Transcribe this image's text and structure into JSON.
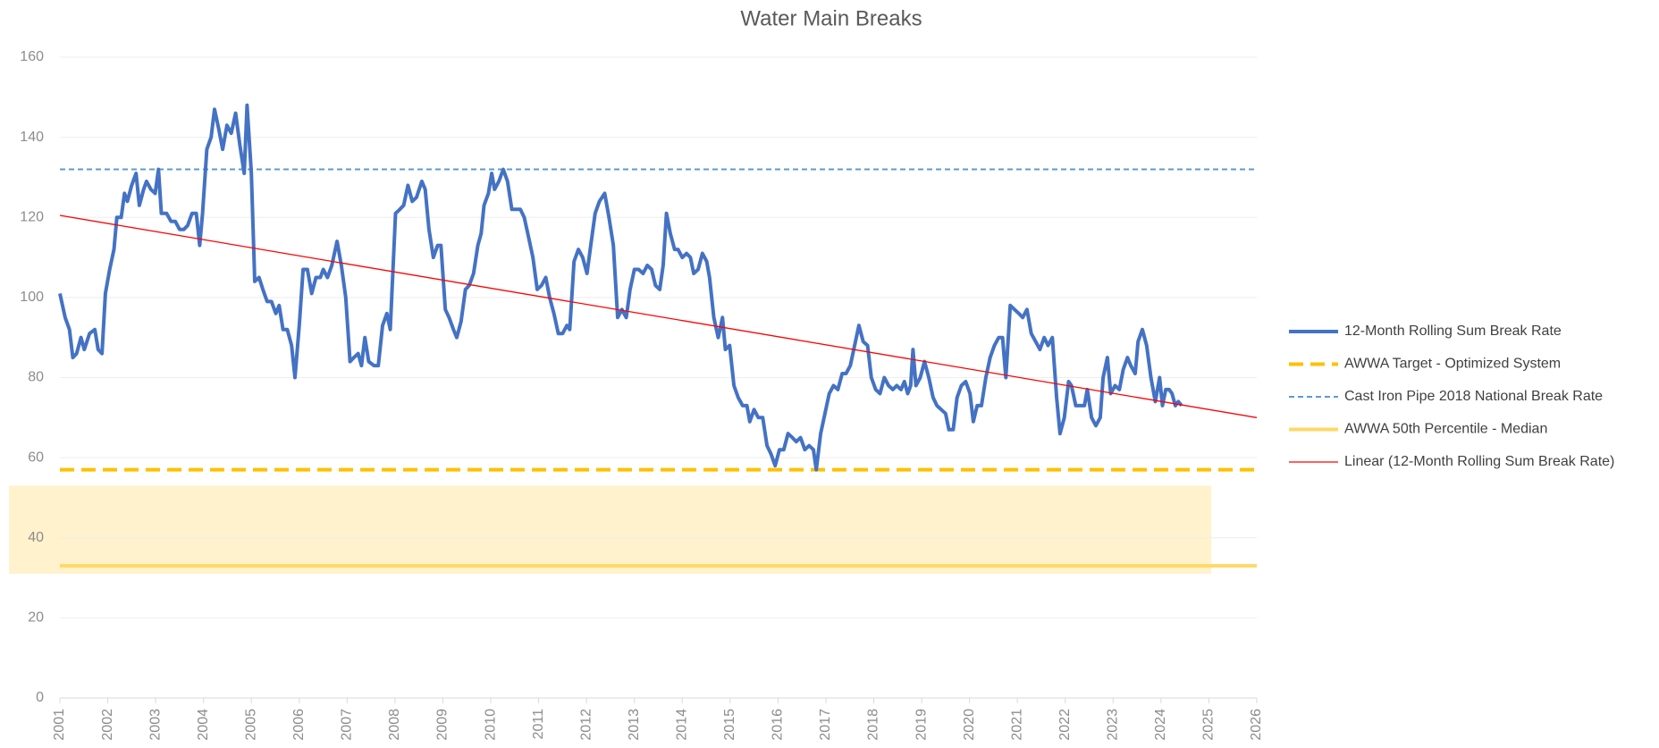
{
  "chart_data": {
    "type": "line",
    "title": "Water Main Breaks",
    "xlim": [
      2001,
      2026
    ],
    "xticks": [
      2001,
      2002,
      2003,
      2004,
      2005,
      2006,
      2007,
      2008,
      2009,
      2010,
      2011,
      2012,
      2013,
      2014,
      2015,
      2016,
      2017,
      2018,
      2019,
      2020,
      2021,
      2022,
      2023,
      2024,
      2025,
      2026
    ],
    "ylim": [
      0,
      160
    ],
    "yticks": [
      0,
      20,
      40,
      60,
      80,
      100,
      120,
      140,
      160
    ],
    "grid": true,
    "legend": "right",
    "band": {
      "ylim": [
        31,
        53
      ],
      "x_end": 2025.05,
      "color": "#fff2cc"
    },
    "series": [
      {
        "name": "12-Month Rolling Sum Break Rate",
        "color": "#4472c4",
        "width": 4,
        "dash": "solid",
        "x": [
          2001.0,
          2001.11,
          2001.2,
          2001.27,
          2001.35,
          2001.44,
          2001.51,
          2001.62,
          2001.73,
          2001.8,
          2001.88,
          2001.95,
          2002.04,
          2002.13,
          2002.19,
          2002.28,
          2002.35,
          2002.41,
          2002.5,
          2002.59,
          2002.66,
          2002.75,
          2002.81,
          2002.9,
          2002.99,
          2003.06,
          2003.12,
          2003.23,
          2003.32,
          2003.41,
          2003.5,
          2003.59,
          2003.67,
          2003.76,
          2003.85,
          2003.92,
          2003.98,
          2004.07,
          2004.16,
          2004.23,
          2004.32,
          2004.4,
          2004.49,
          2004.58,
          2004.67,
          2004.76,
          2004.85,
          2004.91,
          2005.0,
          2005.07,
          2005.16,
          2005.24,
          2005.33,
          2005.42,
          2005.51,
          2005.58,
          2005.66,
          2005.75,
          2005.84,
          2005.91,
          2006.0,
          2006.08,
          2006.17,
          2006.26,
          2006.35,
          2006.44,
          2006.5,
          2006.59,
          2006.68,
          2006.79,
          2006.88,
          2006.97,
          2007.06,
          2007.14,
          2007.23,
          2007.3,
          2007.37,
          2007.45,
          2007.56,
          2007.65,
          2007.74,
          2007.83,
          2007.9,
          2008.01,
          2008.1,
          2008.18,
          2008.27,
          2008.36,
          2008.45,
          2008.56,
          2008.63,
          2008.71,
          2008.8,
          2008.89,
          2008.96,
          2009.05,
          2009.13,
          2009.22,
          2009.29,
          2009.38,
          2009.47,
          2009.55,
          2009.64,
          2009.73,
          2009.8,
          2009.86,
          2009.95,
          2010.02,
          2010.08,
          2010.17,
          2010.26,
          2010.35,
          2010.44,
          2010.53,
          2010.62,
          2010.7,
          2010.79,
          2010.88,
          2010.97,
          2011.06,
          2011.15,
          2011.23,
          2011.32,
          2011.41,
          2011.5,
          2011.59,
          2011.65,
          2011.74,
          2011.83,
          2011.92,
          2012.01,
          2012.1,
          2012.18,
          2012.27,
          2012.38,
          2012.47,
          2012.56,
          2012.65,
          2012.74,
          2012.83,
          2012.91,
          2013.0,
          2013.09,
          2013.18,
          2013.27,
          2013.36,
          2013.44,
          2013.53,
          2013.6,
          2013.67,
          2013.75,
          2013.84,
          2013.91,
          2014.0,
          2014.09,
          2014.17,
          2014.24,
          2014.33,
          2014.42,
          2014.51,
          2014.57,
          2014.66,
          2014.75,
          2014.84,
          2014.9,
          2014.99,
          2015.08,
          2015.17,
          2015.26,
          2015.35,
          2015.41,
          2015.5,
          2015.59,
          2015.68,
          2015.77,
          2015.85,
          2015.94,
          2016.03,
          2016.12,
          2016.21,
          2016.3,
          2016.38,
          2016.47,
          2016.56,
          2016.65,
          2016.74,
          2016.8,
          2016.89,
          2016.98,
          2017.07,
          2017.16,
          2017.25,
          2017.34,
          2017.42,
          2017.51,
          2017.6,
          2017.69,
          2017.78,
          2017.87,
          2017.95,
          2018.04,
          2018.13,
          2018.22,
          2018.31,
          2018.4,
          2018.48,
          2018.57,
          2018.64,
          2018.71,
          2018.77,
          2018.82,
          2018.88,
          2018.97,
          2019.06,
          2019.15,
          2019.24,
          2019.32,
          2019.41,
          2019.5,
          2019.57,
          2019.66,
          2019.74,
          2019.83,
          2019.92,
          2020.01,
          2020.08,
          2020.16,
          2020.25,
          2020.34,
          2020.43,
          2020.52,
          2020.61,
          2020.69,
          2020.76,
          2020.85,
          2020.94,
          2021.03,
          2021.11,
          2021.2,
          2021.29,
          2021.38,
          2021.47,
          2021.56,
          2021.64,
          2021.73,
          2021.82,
          2021.89,
          2021.98,
          2022.07,
          2022.13,
          2022.22,
          2022.31,
          2022.4,
          2022.46,
          2022.55,
          2022.64,
          2022.73,
          2022.79,
          2022.88,
          2022.95,
          2023.04,
          2023.13,
          2023.21,
          2023.3,
          2023.37,
          2023.46,
          2023.52,
          2023.61,
          2023.7,
          2023.79,
          2023.88,
          2023.97,
          2024.03,
          2024.1,
          2024.17,
          2024.23,
          2024.3,
          2024.36,
          2024.43
        ],
        "values": [
          101,
          95,
          92,
          85,
          86,
          90,
          87,
          91,
          92,
          87,
          86,
          101,
          107,
          112,
          120,
          120,
          126,
          124,
          128,
          131,
          123,
          127,
          129,
          127,
          126,
          132,
          121,
          121,
          119,
          119,
          117,
          117,
          118,
          121,
          121,
          113,
          121,
          137,
          140,
          147,
          142,
          137,
          143,
          141,
          146,
          138,
          131,
          148,
          131,
          104,
          105,
          102,
          99,
          99,
          96,
          98,
          92,
          92,
          88,
          80,
          93,
          107,
          107,
          101,
          105,
          105,
          107,
          105,
          108,
          114,
          108,
          100,
          84,
          85,
          86,
          83,
          90,
          84,
          83,
          83,
          93,
          96,
          92,
          121,
          122,
          123,
          128,
          124,
          125,
          129,
          127,
          117,
          110,
          113,
          113,
          97,
          95,
          92,
          90,
          94,
          102,
          103,
          106,
          113,
          116,
          123,
          126,
          131,
          127,
          129,
          132,
          129,
          122,
          122,
          122,
          120,
          115,
          110,
          102,
          103,
          105,
          100,
          96,
          91,
          91,
          93,
          92,
          109,
          112,
          110,
          106,
          114,
          121,
          124,
          126,
          120,
          113,
          95,
          97,
          95,
          102,
          107,
          107,
          106,
          108,
          107,
          103,
          102,
          108,
          121,
          116,
          112,
          112,
          110,
          111,
          110,
          106,
          107,
          111,
          109,
          105,
          95,
          90,
          95,
          87,
          88,
          78,
          75,
          73,
          73,
          69,
          72,
          70,
          70,
          63,
          61,
          58,
          62,
          62,
          66,
          65,
          64,
          65,
          62,
          63,
          62,
          57,
          66,
          71,
          76,
          78,
          77,
          81,
          81,
          83,
          88,
          93,
          89,
          88,
          80,
          77,
          76,
          80,
          78,
          77,
          78,
          77,
          79,
          76,
          78,
          87,
          78,
          80,
          84,
          80,
          75,
          73,
          72,
          71,
          67,
          67,
          75,
          78,
          79,
          76,
          69,
          73,
          73,
          80,
          85,
          88,
          90,
          90,
          80,
          98,
          97,
          96,
          95,
          97,
          91,
          89,
          87,
          90,
          88,
          90,
          75,
          66,
          70,
          79,
          78,
          73,
          73,
          73,
          77,
          70,
          68,
          70,
          80,
          85,
          76,
          78,
          77,
          82,
          85,
          83,
          81,
          89,
          92,
          88,
          80,
          74,
          80,
          73,
          77,
          77,
          76,
          73,
          74,
          73
        ]
      },
      {
        "name": "AWWA Target - Optimized System",
        "color": "#ffc000",
        "width": 4,
        "dash": "long",
        "x": [
          2001,
          2026
        ],
        "values": [
          57,
          57
        ]
      },
      {
        "name": "Cast Iron Pipe 2018 National Break Rate",
        "color": "#5b9bd5",
        "width": 2,
        "dash": "short",
        "x": [
          2001,
          2026
        ],
        "values": [
          132,
          132
        ]
      },
      {
        "name": "AWWA 50th Percentile - Median",
        "color": "#ffd966",
        "width": 4,
        "dash": "solid",
        "x": [
          2001,
          2026
        ],
        "values": [
          33,
          33
        ]
      },
      {
        "name": "Linear (12-Month Rolling Sum Break Rate)",
        "color": "#ff0000",
        "width": 1.3,
        "dash": "solid",
        "x": [
          2001,
          2026
        ],
        "values": [
          120.5,
          70
        ]
      }
    ]
  }
}
